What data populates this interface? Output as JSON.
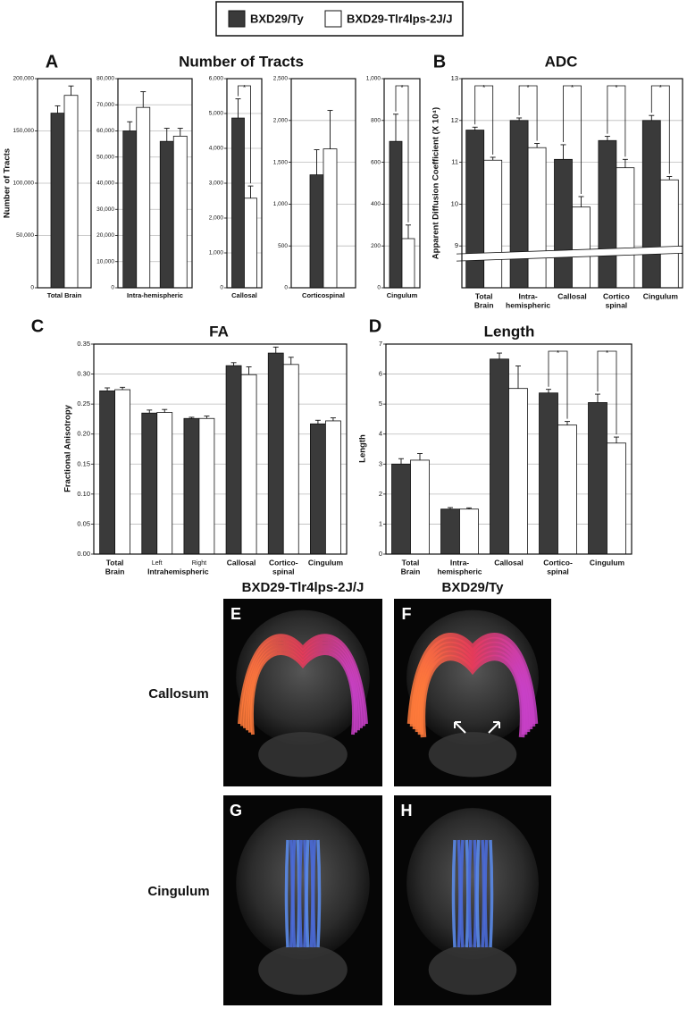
{
  "chart_data": [
    {
      "type": "bar",
      "panel": "A",
      "title": "Number of Tracts",
      "ylabel": "Number of Tracts",
      "xlabel": "Total Brain",
      "series": [
        {
          "name": "BXD29/Ty",
          "color": "#3a3a3a",
          "values": [
            167000
          ],
          "errors": [
            7000
          ]
        },
        {
          "name": "BXD29-Tlr4lps-2J/J",
          "color": "#ffffff",
          "values": [
            184000
          ],
          "errors": [
            9000
          ]
        }
      ],
      "ylim": [
        0,
        200000
      ],
      "yticks": [
        0,
        {
          "value": 50000,
          "label": "50,000"
        },
        {
          "value": 100000,
          "label": "100,000"
        },
        {
          "value": 150000,
          "label": "150,000"
        },
        {
          "value": 200000,
          "label": "200,000"
        }
      ],
      "grid": true
    },
    {
      "type": "bar",
      "xlabel": "Intra-hemispheric",
      "series": [
        {
          "name": "BXD29/Ty",
          "color": "#3a3a3a",
          "values": [
            60000,
            56000
          ],
          "errors": [
            3500,
            5000
          ]
        },
        {
          "name": "BXD29-Tlr4lps-2J/J",
          "color": "#ffffff",
          "values": [
            69000,
            58000
          ],
          "errors": [
            6000,
            3000
          ]
        }
      ],
      "ylim": [
        0,
        80000
      ],
      "yticks": [
        0,
        {
          "value": 10000,
          "label": "10,000"
        },
        {
          "value": 20000,
          "label": "20,000"
        },
        {
          "value": 30000,
          "label": "30,000"
        },
        {
          "value": 40000,
          "label": "40,000"
        },
        {
          "value": 50000,
          "label": "50,000"
        },
        {
          "value": 60000,
          "label": "60,000"
        },
        {
          "value": 70000,
          "label": "70,000"
        },
        {
          "value": 80000,
          "label": "80,000"
        }
      ],
      "grid": true
    },
    {
      "type": "bar",
      "xlabel": "Callosal",
      "significant": [
        true
      ],
      "significance_label": "*",
      "series": [
        {
          "name": "BXD29/Ty",
          "color": "#3a3a3a",
          "values": [
            4870
          ],
          "errors": [
            550
          ]
        },
        {
          "name": "BXD29-Tlr4lps-2J/J",
          "color": "#ffffff",
          "values": [
            2570
          ],
          "errors": [
            350
          ]
        }
      ],
      "ylim": [
        0,
        6000
      ],
      "yticks": [
        0,
        {
          "value": 1000,
          "label": "1,000"
        },
        {
          "value": 2000,
          "label": "2,000"
        },
        {
          "value": 3000,
          "label": "3,000"
        },
        {
          "value": 4000,
          "label": "4,000"
        },
        {
          "value": 5000,
          "label": "5,000"
        },
        {
          "value": 6000,
          "label": "6,000"
        }
      ],
      "grid": true
    },
    {
      "type": "bar",
      "xlabel": "Corticospinal",
      "series": [
        {
          "name": "BXD29/Ty",
          "color": "#3a3a3a",
          "values": [
            1350
          ],
          "errors": [
            300
          ]
        },
        {
          "name": "BXD29-Tlr4lps-2J/J",
          "color": "#ffffff",
          "values": [
            1660
          ],
          "errors": [
            460
          ]
        }
      ],
      "ylim": [
        0,
        2500
      ],
      "yticks": [
        0,
        500,
        {
          "value": 1000,
          "label": "1,000"
        },
        {
          "value": 1500,
          "label": "1,500"
        },
        {
          "value": 2000,
          "label": "2,000"
        },
        {
          "value": 2500,
          "label": "2,500"
        }
      ],
      "grid": true
    },
    {
      "type": "bar",
      "xlabel": "Cingulum",
      "significant": [
        true
      ],
      "significance_label": "*",
      "series": [
        {
          "name": "BXD29/Ty",
          "color": "#3a3a3a",
          "values": [
            700
          ],
          "errors": [
            130
          ]
        },
        {
          "name": "BXD29-Tlr4lps-2J/J",
          "color": "#ffffff",
          "values": [
            235
          ],
          "errors": [
            65
          ]
        }
      ],
      "ylim": [
        0,
        1000
      ],
      "yticks": [
        0,
        200,
        400,
        600,
        800,
        {
          "value": 1000,
          "label": "1,000"
        }
      ],
      "grid": true
    },
    {
      "type": "bar",
      "panel": "B",
      "title": "ADC",
      "ylabel": "Apparent Diffusion Coefficient (X 10⁴)",
      "axis_break": true,
      "categories": [
        [
          "Total",
          "Brain"
        ],
        [
          "Intra-",
          "hemispheric"
        ],
        [
          "Callosal"
        ],
        [
          "Cortico",
          "spinal"
        ],
        [
          "Cingulum"
        ]
      ],
      "significant": [
        true,
        true,
        true,
        true,
        true
      ],
      "significance_label": "*",
      "series": [
        {
          "name": "BXD29/Ty",
          "color": "#3a3a3a",
          "values": [
            11.77,
            12.0,
            11.07,
            11.52,
            12.0
          ],
          "errors": [
            0.07,
            0.06,
            0.35,
            0.1,
            0.12
          ]
        },
        {
          "name": "BXD29-Tlr4lps-2J/J",
          "color": "#ffffff",
          "values": [
            11.05,
            11.35,
            9.93,
            10.87,
            10.58
          ],
          "errors": [
            0.07,
            0.1,
            0.25,
            0.2,
            0.08
          ]
        }
      ],
      "ylim": [
        8,
        13
      ],
      "yticks": [
        9,
        10,
        11,
        12,
        13
      ],
      "grid": true
    },
    {
      "type": "bar",
      "panel": "C",
      "title": "FA",
      "ylabel": "Fractional Anisotropy",
      "group_label": "Intrahemispheric",
      "categories": [
        [
          "Total",
          "Brain"
        ],
        [
          "Left"
        ],
        [
          "Right"
        ],
        [
          "Callosal"
        ],
        [
          "Cortico-",
          "spinal"
        ],
        [
          "Cingulum"
        ]
      ],
      "series": [
        {
          "name": "BXD29/Ty",
          "color": "#3a3a3a",
          "values": [
            0.272,
            0.235,
            0.226,
            0.314,
            0.335,
            0.217
          ],
          "errors": [
            0.005,
            0.005,
            0.002,
            0.005,
            0.01,
            0.006
          ]
        },
        {
          "name": "BXD29-Tlr4lps-2J/J",
          "color": "#ffffff",
          "values": [
            0.274,
            0.236,
            0.226,
            0.299,
            0.316,
            0.222
          ],
          "errors": [
            0.004,
            0.005,
            0.004,
            0.013,
            0.012,
            0.005
          ]
        }
      ],
      "ylim": [
        0,
        0.35
      ],
      "yticks": [
        {
          "value": 0,
          "label": "0.00"
        },
        0.05,
        {
          "value": 0.1,
          "label": "0.10"
        },
        0.15,
        {
          "value": 0.2,
          "label": "0.20"
        },
        0.25,
        {
          "value": 0.3,
          "label": "0.30"
        },
        0.35
      ],
      "grid": true
    },
    {
      "type": "bar",
      "panel": "D",
      "title": "Length",
      "ylabel": "Length",
      "categories": [
        [
          "Total",
          "Brain"
        ],
        [
          "Intra-",
          "hemispheric"
        ],
        [
          "Callosal"
        ],
        [
          "Cortico-",
          "spinal"
        ],
        [
          "Cingulum"
        ]
      ],
      "significant": [
        false,
        false,
        false,
        true,
        true
      ],
      "significance_label": "*",
      "series": [
        {
          "name": "BXD29/Ty",
          "color": "#3a3a3a",
          "values": [
            3.0,
            1.5,
            6.5,
            5.37,
            5.05
          ],
          "errors": [
            0.18,
            0.05,
            0.2,
            0.12,
            0.28
          ]
        },
        {
          "name": "BXD29-Tlr4lps-2J/J",
          "color": "#ffffff",
          "values": [
            3.13,
            1.5,
            5.52,
            4.3,
            3.7
          ],
          "errors": [
            0.22,
            0.04,
            0.75,
            0.12,
            0.2
          ]
        }
      ],
      "ylim": [
        0,
        7
      ],
      "yticks": [
        0,
        1,
        2,
        3,
        4,
        5,
        6,
        7
      ],
      "grid": true
    }
  ],
  "images": {
    "columns": [
      "BXD29-Tlr4lps-2J/J",
      "BXD29/Ty"
    ],
    "rows": [
      "Callosum",
      "Cingulum"
    ],
    "panels": [
      "E",
      "F",
      "G",
      "H"
    ]
  }
}
